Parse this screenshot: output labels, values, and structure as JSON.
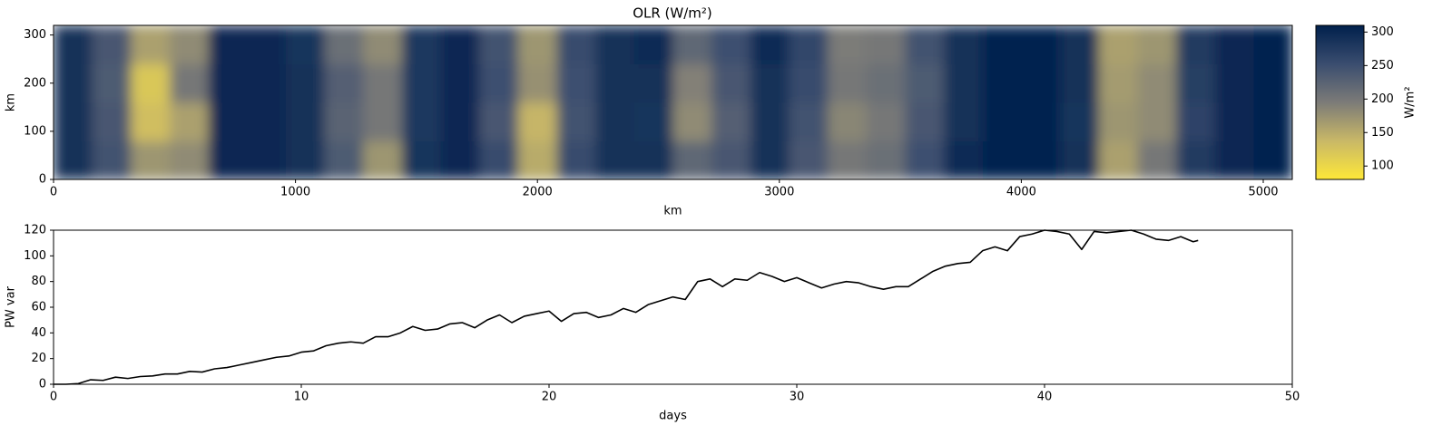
{
  "chart_data": [
    {
      "type": "heatmap",
      "title": "OLR (W/m²)",
      "xlabel": "km",
      "ylabel": "km",
      "xlim": [
        0,
        5120
      ],
      "ylim": [
        0,
        320
      ],
      "xticks": [
        0,
        1000,
        2000,
        3000,
        4000,
        5000
      ],
      "yticks": [
        0,
        100,
        200,
        300
      ],
      "x": [
        80,
        240,
        400,
        560,
        720,
        880,
        1040,
        1200,
        1360,
        1520,
        1680,
        1840,
        2000,
        2160,
        2320,
        2480,
        2640,
        2800,
        2960,
        3120,
        3280,
        3440,
        3600,
        3760,
        3920,
        4080,
        4240,
        4400,
        4560,
        4720,
        4880,
        5040
      ],
      "y": [
        40,
        120,
        200,
        280
      ],
      "z": [
        [
          290,
          245,
          170,
          180,
          300,
          300,
          290,
          235,
          170,
          285,
          300,
          255,
          150,
          255,
          290,
          290,
          220,
          240,
          290,
          240,
          200,
          210,
          250,
          295,
          305,
          305,
          290,
          160,
          200,
          275,
          300,
          305
        ],
        [
          290,
          240,
          130,
          160,
          300,
          300,
          290,
          225,
          200,
          280,
          300,
          240,
          140,
          245,
          290,
          285,
          180,
          230,
          290,
          245,
          185,
          200,
          240,
          290,
          305,
          305,
          285,
          170,
          180,
          265,
          300,
          305
        ],
        [
          290,
          235,
          120,
          200,
          300,
          300,
          290,
          230,
          200,
          280,
          300,
          250,
          175,
          250,
          290,
          290,
          190,
          240,
          290,
          255,
          200,
          210,
          235,
          290,
          305,
          305,
          290,
          165,
          180,
          270,
          300,
          305
        ],
        [
          290,
          240,
          160,
          180,
          300,
          300,
          285,
          210,
          180,
          280,
          300,
          245,
          170,
          255,
          290,
          295,
          220,
          250,
          295,
          260,
          195,
          200,
          245,
          290,
          305,
          305,
          290,
          160,
          170,
          275,
          300,
          305
        ]
      ],
      "colors": [
        "#fee838",
        "#c9b867",
        "#7c7b78",
        "#3a4d6f",
        "#00204c"
      ],
      "zlim": [
        80,
        310
      ],
      "colorbar_ticks": [
        100,
        150,
        200,
        250,
        300
      ],
      "colorbar_label": "W/m²"
    },
    {
      "type": "line",
      "xlabel": "days",
      "ylabel": "PW var",
      "xlim": [
        0,
        50
      ],
      "ylim": [
        0,
        120
      ],
      "xticks": [
        0,
        10,
        20,
        30,
        40,
        50
      ],
      "yticks": [
        0,
        20,
        40,
        60,
        80,
        100,
        120
      ],
      "series": [
        {
          "color": "#000000",
          "x": [
            0,
            0.5,
            1,
            1.5,
            2,
            2.5,
            3,
            3.5,
            4,
            4.5,
            5,
            5.5,
            6,
            6.5,
            7,
            7.5,
            8,
            8.5,
            9,
            9.5,
            10,
            10.5,
            11,
            11.5,
            12,
            12.5,
            13,
            13.5,
            14,
            14.5,
            15,
            15.5,
            16,
            16.5,
            17,
            17.5,
            18,
            18.5,
            19,
            19.5,
            20,
            20.5,
            21,
            21.5,
            22,
            22.5,
            23,
            23.5,
            24,
            24.5,
            25,
            25.5,
            26,
            26.5,
            27,
            27.5,
            28,
            28.5,
            29,
            29.5,
            30,
            30.5,
            31,
            31.5,
            32,
            32.5,
            33,
            33.5,
            34,
            34.5,
            35,
            35.5,
            36,
            36.5,
            37,
            37.5,
            38,
            38.5,
            39,
            39.5,
            40,
            40.5,
            41,
            41.5,
            42,
            42.5,
            43,
            43.5,
            44,
            44.5,
            45,
            45.5,
            46,
            46.2
          ],
          "values": [
            0,
            0,
            0.5,
            3.5,
            3,
            5.5,
            4.5,
            6,
            6.5,
            8,
            8,
            10,
            9.5,
            12,
            13,
            15,
            17,
            19,
            21,
            22,
            25,
            26,
            30,
            32,
            33,
            32,
            37,
            37,
            40,
            45,
            42,
            43,
            47,
            48,
            44,
            50,
            54,
            48,
            53,
            55,
            57,
            49,
            55,
            56,
            52,
            54,
            59,
            56,
            62,
            65,
            68,
            66,
            80,
            82,
            76,
            82,
            81,
            87,
            84,
            80,
            83,
            79,
            75,
            78,
            80,
            79,
            76,
            74,
            76,
            76,
            82,
            88,
            92,
            94,
            95,
            104,
            107,
            104,
            115,
            117,
            120,
            119,
            117,
            105,
            119,
            118,
            119,
            120,
            117,
            113,
            112,
            115,
            111,
            112
          ]
        }
      ]
    }
  ]
}
